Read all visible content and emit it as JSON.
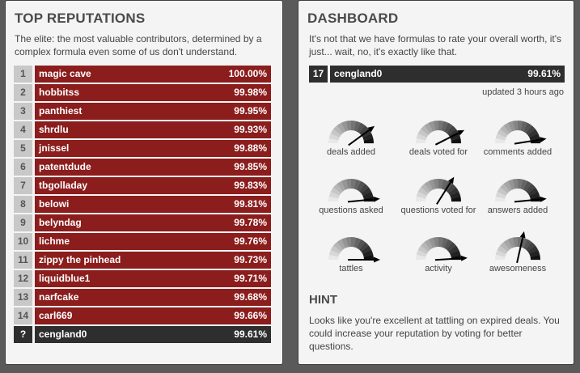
{
  "leaderboard": {
    "title": "TOP REPUTATIONS",
    "description": "The elite: the most valuable contributors, determined by a complex formula even some of us don't understand.",
    "rows": [
      {
        "rank": "1",
        "name": "magic cave",
        "score": "100.00%"
      },
      {
        "rank": "2",
        "name": "hobbitss",
        "score": "99.98%"
      },
      {
        "rank": "3",
        "name": "panthiest",
        "score": "99.95%"
      },
      {
        "rank": "4",
        "name": "shrdlu",
        "score": "99.93%"
      },
      {
        "rank": "5",
        "name": "jnissel",
        "score": "99.88%"
      },
      {
        "rank": "6",
        "name": "patentdude",
        "score": "99.85%"
      },
      {
        "rank": "7",
        "name": "tbgolladay",
        "score": "99.83%"
      },
      {
        "rank": "8",
        "name": "belowi",
        "score": "99.81%"
      },
      {
        "rank": "9",
        "name": "belyndag",
        "score": "99.78%"
      },
      {
        "rank": "10",
        "name": "lichme",
        "score": "99.76%"
      },
      {
        "rank": "11",
        "name": "zippy the pinhead",
        "score": "99.73%"
      },
      {
        "rank": "12",
        "name": "liquidblue1",
        "score": "99.71%"
      },
      {
        "rank": "13",
        "name": "narfcake",
        "score": "99.68%"
      },
      {
        "rank": "14",
        "name": "carl669",
        "score": "99.66%"
      }
    ],
    "current_user": {
      "rank": "?",
      "name": "cengland0",
      "score": "99.61%"
    }
  },
  "dashboard": {
    "title": "DASHBOARD",
    "description": "It's not that we have formulas to rate your overall worth, it's just... wait, no, it's exactly like that.",
    "my_rank": {
      "rank": "17",
      "name": "cengland0",
      "score": "99.61%"
    },
    "updated": "updated 3 hours ago",
    "gauges": [
      {
        "label": "deals added",
        "level": 0.8
      },
      {
        "label": "deals voted for",
        "level": 0.85
      },
      {
        "label": "comments added",
        "level": 0.95
      },
      {
        "label": "questions asked",
        "level": 0.97
      },
      {
        "label": "questions voted for",
        "level": 0.68
      },
      {
        "label": "answers added",
        "level": 0.97
      },
      {
        "label": "tattles",
        "level": 1.0
      },
      {
        "label": "activity",
        "level": 0.98
      },
      {
        "label": "awesomeness",
        "level": 0.57
      }
    ],
    "colors": {
      "arc_light": "#e8e8e8",
      "arc_dark": "#111111",
      "needle": "#000000"
    }
  },
  "hint": {
    "title": "HINT",
    "text": "Looks like you're excellent at tattling on expired deals. You could increase your reputation by voting for better questions."
  },
  "colors": {
    "row_red": "#8b1d1d",
    "row_dark": "#2e2e2e",
    "rank_gray": "#c8c8c8"
  }
}
